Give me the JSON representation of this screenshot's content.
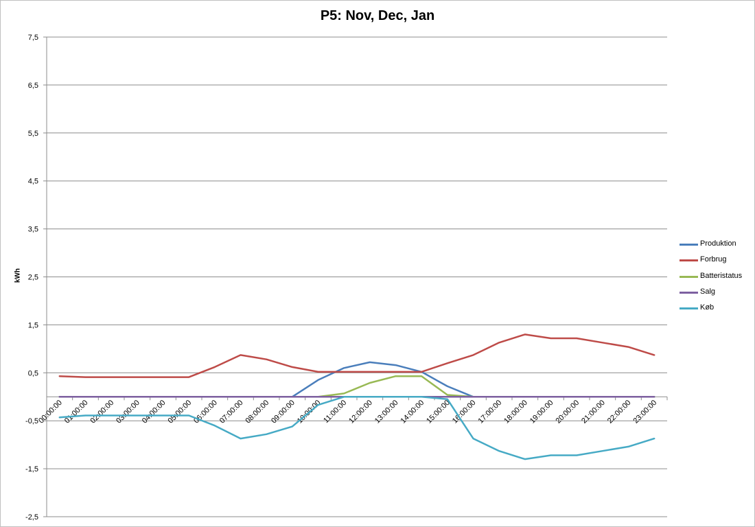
{
  "chart_data": {
    "type": "line",
    "title": "P5: Nov, Dec, Jan",
    "ylabel": "kWh",
    "xlabel": "",
    "ylim": [
      -2.5,
      7.5
    ],
    "yticks": [
      "7,5",
      "6,5",
      "5,5",
      "4,5",
      "3,5",
      "2,5",
      "1,5",
      "0,5",
      "-0,5",
      "-1,5",
      "-2,5"
    ],
    "ytick_values": [
      7.5,
      6.5,
      5.5,
      4.5,
      3.5,
      2.5,
      1.5,
      0.5,
      -0.5,
      -1.5,
      -2.5
    ],
    "grid": true,
    "legend_position": "right",
    "categories": [
      "00:00:00",
      "01:00:00",
      "02:00:00",
      "03:00:00",
      "04:00:00",
      "05:00:00",
      "06:00:00",
      "07:00:00",
      "08:00:00",
      "09:00:00",
      "10:00:00",
      "11:00:00",
      "12:00:00",
      "13:00:00",
      "14:00:00",
      "15:00:00",
      "16:00:00",
      "17:00:00",
      "18:00:00",
      "19:00:00",
      "20:00:00",
      "21:00:00",
      "22:00:00",
      "23:00:00"
    ],
    "series": [
      {
        "name": "Produktion",
        "color": "#4a7ebb",
        "values": [
          0,
          0,
          0,
          0,
          0,
          0,
          0,
          0,
          0,
          0,
          0.35,
          0.6,
          0.72,
          0.66,
          0.52,
          0.22,
          0,
          0,
          0,
          0,
          0,
          0,
          0,
          0
        ]
      },
      {
        "name": "Forbrug",
        "color": "#be4b48",
        "values": [
          0.43,
          0.41,
          0.41,
          0.41,
          0.41,
          0.41,
          0.62,
          0.87,
          0.78,
          0.62,
          0.52,
          0.52,
          0.52,
          0.52,
          0.52,
          0.7,
          0.87,
          1.13,
          1.3,
          1.22,
          1.22,
          1.13,
          1.04,
          0.87
        ]
      },
      {
        "name": "Batteristatus",
        "color": "#98b954",
        "values": [
          0,
          0,
          0,
          0,
          0,
          0,
          0,
          0,
          0,
          0,
          0,
          0.07,
          0.29,
          0.43,
          0.43,
          0.04,
          0,
          0,
          0,
          0,
          0,
          0,
          0,
          0
        ]
      },
      {
        "name": "Salg",
        "color": "#7d60a0",
        "values": [
          0,
          0,
          0,
          0,
          0,
          0,
          0,
          0,
          0,
          0,
          0,
          0,
          0,
          0,
          0,
          0,
          0,
          0,
          0,
          0,
          0,
          0,
          0,
          0
        ]
      },
      {
        "name": "Køb",
        "color": "#46aac5",
        "values": [
          -0.43,
          -0.39,
          -0.39,
          -0.39,
          -0.39,
          -0.39,
          -0.6,
          -0.87,
          -0.78,
          -0.62,
          -0.17,
          0,
          0,
          0,
          0,
          -0.05,
          -0.87,
          -1.13,
          -1.3,
          -1.22,
          -1.22,
          -1.13,
          -1.04,
          -0.87
        ]
      }
    ]
  }
}
